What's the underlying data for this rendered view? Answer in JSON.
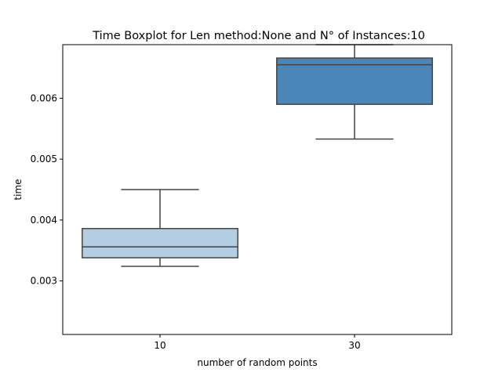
{
  "chart_data": {
    "type": "boxplot",
    "title": "Time Boxplot for Len method:None and N° of Instances:10",
    "xlabel": "number of random points",
    "ylabel": "time",
    "categories": [
      "10",
      "30"
    ],
    "ylim": [
      0.00212,
      0.00688
    ],
    "yticks": [
      0.003,
      0.004,
      0.005,
      0.006
    ],
    "ytick_labels": [
      "0.003",
      "0.004",
      "0.005",
      "0.006"
    ],
    "grid": false,
    "legend": "none",
    "boxes": [
      {
        "category": "10",
        "whisker_low": 0.00324,
        "q1": 0.00338,
        "median": 0.00356,
        "q3": 0.00386,
        "whisker_high": 0.0045,
        "color": "#b3cde3"
      },
      {
        "category": "30",
        "whisker_low": 0.00533,
        "q1": 0.0059,
        "median": 0.00655,
        "q3": 0.00666,
        "whisker_high": 0.00688,
        "color": "#4a87b8"
      }
    ],
    "line_color": "#444444"
  }
}
